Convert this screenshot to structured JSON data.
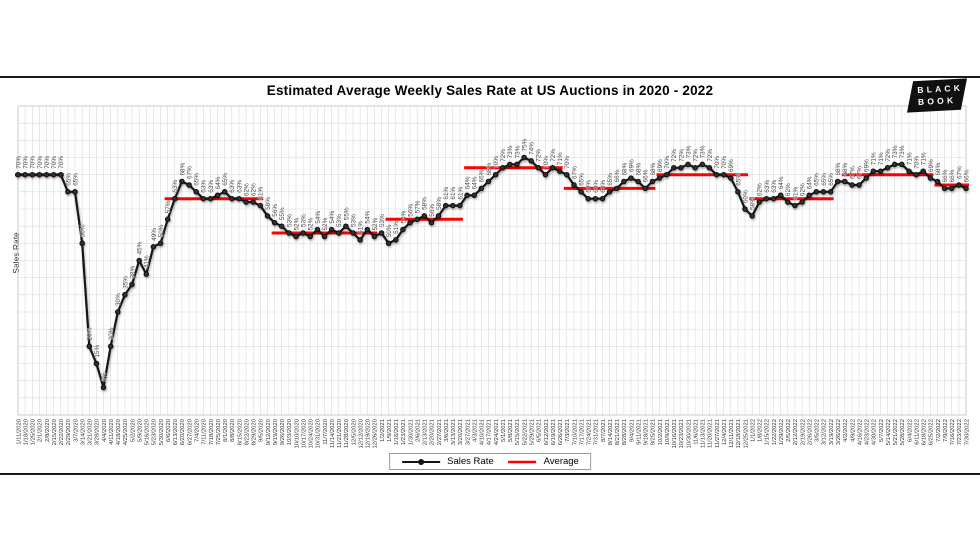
{
  "header": {
    "title": "Estimated Average Weekly Sales Rate at US Auctions in 2020 - 2022"
  },
  "logo": {
    "line1": "BLACK",
    "line2": "BOOK"
  },
  "legend": {
    "sales_rate": "Sales Rate",
    "average": "Average"
  },
  "colors": {
    "series": "#141414",
    "average": "#ff0000",
    "grid": "#d9d9d9",
    "label": "#3a3a3a",
    "logo_bg": "#101010"
  },
  "chart_data": {
    "type": "line",
    "title": "Estimated Average Weekly Sales Rate at US Auctions in 2020 - 2022",
    "xlabel": "",
    "ylabel": "Sales Rate",
    "ylim": [
      0,
      90
    ],
    "grid": true,
    "legend_position": "bottom",
    "value_suffix": "%",
    "x": [
      "1/11/2020",
      "1/18/2020",
      "1/25/2020",
      "2/1/2020",
      "2/8/2020",
      "2/15/2020",
      "2/22/2020",
      "2/29/2020",
      "3/7/2020",
      "3/14/2020",
      "3/21/2020",
      "3/28/2020",
      "4/4/2020",
      "4/11/2020",
      "4/18/2020",
      "4/25/2020",
      "5/2/2020",
      "5/9/2020",
      "5/16/2020",
      "5/23/2020",
      "5/30/2020",
      "6/6/2020",
      "6/13/2020",
      "6/20/2020",
      "6/27/2020",
      "7/4/2020",
      "7/11/2020",
      "7/18/2020",
      "7/25/2020",
      "8/1/2020",
      "8/8/2020",
      "8/15/2020",
      "8/22/2020",
      "8/29/2020",
      "9/5/2020",
      "9/12/2020",
      "9/19/2020",
      "9/26/2020",
      "10/3/2020",
      "10/10/2020",
      "10/17/2020",
      "10/24/2020",
      "10/31/2020",
      "11/7/2020",
      "11/14/2020",
      "11/21/2020",
      "11/28/2020",
      "12/5/2020",
      "12/12/2020",
      "12/19/2020",
      "12/26/2020",
      "1/2/2021",
      "1/9/2021",
      "1/16/2021",
      "1/23/2021",
      "1/30/2021",
      "2/6/2021",
      "2/13/2021",
      "2/20/2021",
      "2/27/2021",
      "3/6/2021",
      "3/13/2021",
      "3/20/2021",
      "3/27/2021",
      "4/3/2021",
      "4/10/2021",
      "4/17/2021",
      "4/24/2021",
      "5/1/2021",
      "5/8/2021",
      "5/15/2021",
      "5/22/2021",
      "5/29/2021",
      "6/5/2021",
      "6/12/2021",
      "6/19/2021",
      "6/26/2021",
      "7/3/2021",
      "7/10/2021",
      "7/17/2021",
      "7/24/2021",
      "7/31/2021",
      "8/7/2021",
      "8/14/2021",
      "8/21/2021",
      "8/28/2021",
      "9/4/2021",
      "9/11/2021",
      "9/18/2021",
      "9/25/2021",
      "10/2/2021",
      "10/9/2021",
      "10/16/2021",
      "10/23/2021",
      "10/30/2021",
      "11/6/2021",
      "11/13/2021",
      "11/20/2021",
      "11/27/2021",
      "12/4/2021",
      "12/11/2021",
      "12/18/2021",
      "12/25/2021",
      "1/1/2022",
      "1/8/2022",
      "1/15/2022",
      "1/22/2022",
      "1/29/2022",
      "2/5/2022",
      "2/12/2022",
      "2/19/2022",
      "2/26/2022",
      "3/5/2022",
      "3/12/2022",
      "3/19/2022",
      "3/26/2022",
      "4/2/2022",
      "4/9/2022",
      "4/16/2022",
      "4/23/2022",
      "4/30/2022",
      "5/7/2022",
      "5/14/2022",
      "5/21/2022",
      "5/28/2022",
      "6/4/2022",
      "6/11/2022",
      "6/18/2022",
      "6/25/2022",
      "7/2/2022",
      "7/9/2022",
      "7/16/2022",
      "7/23/2022",
      "7/30/2022"
    ],
    "series": [
      {
        "name": "Sales Rate",
        "values": [
          70,
          70,
          70,
          70,
          70,
          70,
          70,
          65,
          65,
          50,
          20,
          15,
          8,
          20,
          30,
          35,
          38,
          45,
          41,
          49,
          50,
          57,
          63,
          68,
          67,
          65,
          63,
          63,
          64,
          65,
          63,
          63,
          62,
          62,
          61,
          58,
          56,
          55,
          53,
          52,
          53,
          52,
          54,
          52,
          54,
          53,
          55,
          53,
          51,
          54,
          52,
          53,
          50,
          51,
          54,
          56,
          57,
          58,
          56,
          58,
          61,
          61,
          61,
          64,
          64,
          66,
          68,
          70,
          72,
          73,
          73,
          75,
          74,
          72,
          70,
          72,
          71,
          70,
          67,
          65,
          63,
          63,
          63,
          65,
          66,
          68,
          69,
          68,
          66,
          68,
          69,
          70,
          72,
          72,
          73,
          72,
          73,
          72,
          70,
          70,
          69,
          65,
          60,
          58,
          62,
          63,
          63,
          64,
          62,
          61,
          62,
          64,
          65,
          65,
          65,
          68,
          68,
          67,
          67,
          69,
          71,
          71,
          72,
          73,
          73,
          71,
          70,
          71,
          69,
          68,
          66,
          66,
          67,
          66
        ]
      }
    ],
    "average_segments": [
      {
        "start_index": 0,
        "end_index": 6,
        "start": "1/11/2020",
        "end": "2/22/2020",
        "value": 70
      },
      {
        "start_index": 21,
        "end_index": 34,
        "start": "6/6/2020",
        "end": "9/5/2020",
        "value": 63
      },
      {
        "start_index": 36,
        "end_index": 50,
        "start": "9/19/2020",
        "end": "12/26/2020",
        "value": 53
      },
      {
        "start_index": 52,
        "end_index": 62,
        "start": "1/9/2021",
        "end": "3/20/2021",
        "value": 57
      },
      {
        "start_index": 63,
        "end_index": 76,
        "start": "3/27/2021",
        "end": "6/26/2021",
        "value": 72
      },
      {
        "start_index": 77,
        "end_index": 89,
        "start": "7/3/2021",
        "end": "9/25/2021",
        "value": 66
      },
      {
        "start_index": 90,
        "end_index": 102,
        "start": "10/2/2021",
        "end": "12/25/2021",
        "value": 70
      },
      {
        "start_index": 103,
        "end_index": 114,
        "start": "1/1/2022",
        "end": "3/19/2022",
        "value": 63
      },
      {
        "start_index": 116,
        "end_index": 128,
        "start": "4/2/2022",
        "end": "6/25/2022",
        "value": 70
      },
      {
        "start_index": 129,
        "end_index": 133,
        "start": "7/2/2022",
        "end": "7/30/2022",
        "value": 67
      }
    ]
  }
}
